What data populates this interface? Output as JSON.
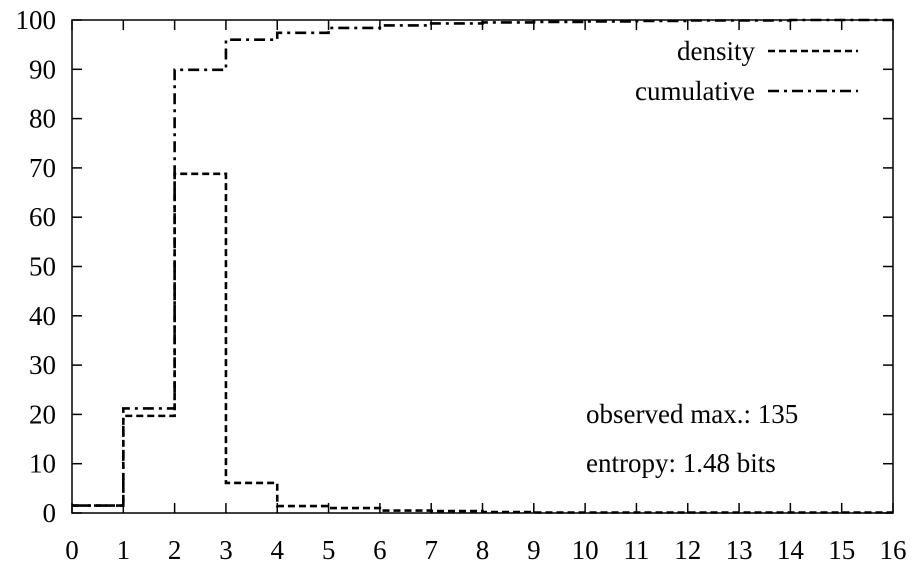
{
  "chart_data": {
    "type": "line",
    "step": true,
    "xlim": [
      0,
      16
    ],
    "ylim": [
      0,
      100
    ],
    "x_ticks": [
      0,
      1,
      2,
      3,
      4,
      5,
      6,
      7,
      8,
      9,
      10,
      11,
      12,
      13,
      14,
      15,
      16
    ],
    "y_ticks": [
      0,
      10,
      20,
      30,
      40,
      50,
      60,
      70,
      80,
      90,
      100
    ],
    "grid": false,
    "legend_position": "top-right",
    "series": [
      {
        "name": "density",
        "dash": "dashed",
        "x": [
          0,
          1,
          2,
          3,
          4,
          5,
          6,
          7,
          8,
          9,
          10,
          11,
          12,
          13,
          14,
          15,
          16
        ],
        "values": [
          1.5,
          19.7,
          68.8,
          6.1,
          1.4,
          1.0,
          0.5,
          0.4,
          0.2,
          0.1,
          0.1,
          0.1,
          0.1,
          0.1,
          0.1,
          0.1,
          0.1
        ]
      },
      {
        "name": "cumulative",
        "dash": "dashdot",
        "x": [
          0,
          1,
          2,
          3,
          4,
          5,
          6,
          7,
          8,
          9,
          10,
          11,
          12,
          13,
          14,
          15,
          16
        ],
        "values": [
          1.5,
          21.2,
          89.9,
          96.0,
          97.4,
          98.4,
          98.9,
          99.3,
          99.5,
          99.6,
          99.7,
          99.8,
          99.9,
          99.9,
          100,
          100,
          100
        ]
      }
    ],
    "annotations": [
      "observed max.: 135",
      "entropy: 1.48 bits"
    ]
  }
}
